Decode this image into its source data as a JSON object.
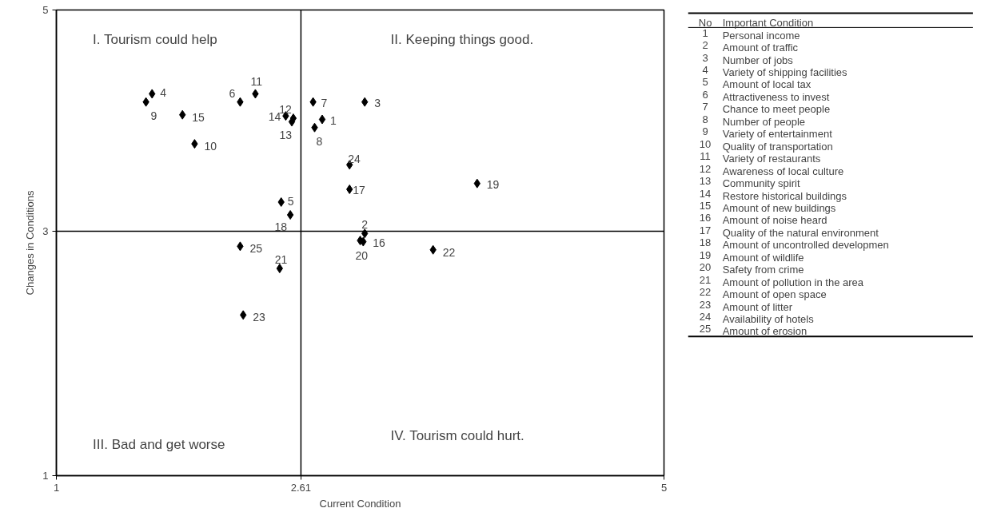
{
  "chart_data": {
    "type": "scatter",
    "xlabel": "Current Condition",
    "ylabel": "Changes in Conditions",
    "x": [
      2.75,
      3.03,
      3.03,
      1.63,
      2.48,
      2.21,
      2.69,
      2.7,
      1.59,
      1.91,
      2.31,
      2.56,
      2.55,
      2.51,
      1.83,
      3.02,
      2.93,
      2.54,
      3.77,
      3.0,
      2.47,
      3.48,
      2.23,
      2.93,
      2.21
    ],
    "values": [
      4.06,
      3.08,
      4.21,
      4.28,
      3.35,
      4.21,
      4.21,
      3.99,
      4.21,
      3.85,
      4.28,
      4.07,
      4.04,
      4.09,
      4.1,
      3.01,
      3.46,
      3.24,
      3.51,
      3.02,
      2.78,
      2.94,
      2.38,
      3.67,
      2.97
    ],
    "color": "#000000",
    "marker": "diamond",
    "grid": false,
    "xlim": [
      1,
      5
    ],
    "ylim": [
      1,
      5
    ],
    "xticks": [
      1,
      2.61,
      5
    ],
    "yticks": [
      1,
      {
        "value": 3.1,
        "label": "3"
      },
      5
    ],
    "ref_lines": [
      {
        "axis": "x",
        "value": 2.61,
        "color": "#000000"
      },
      {
        "axis": "y",
        "value": 3.1,
        "color": "#000000"
      }
    ],
    "annotations": [
      {
        "text": "1",
        "x": 2.75,
        "y": 4.06
      },
      {
        "text": "2",
        "x": 3.03,
        "y": 3.08
      },
      {
        "text": "3",
        "x": 3.03,
        "y": 4.21
      },
      {
        "text": "4",
        "x": 1.63,
        "y": 4.28
      },
      {
        "text": "5",
        "x": 2.48,
        "y": 3.35
      },
      {
        "text": "6",
        "x": 2.21,
        "y": 4.21
      },
      {
        "text": "7",
        "x": 2.69,
        "y": 4.21
      },
      {
        "text": "8",
        "x": 2.7,
        "y": 3.99
      },
      {
        "text": "9",
        "x": 1.59,
        "y": 4.21
      },
      {
        "text": "10",
        "x": 1.91,
        "y": 3.85
      },
      {
        "text": "11",
        "x": 2.31,
        "y": 4.28
      },
      {
        "text": "12",
        "x": 2.56,
        "y": 4.07
      },
      {
        "text": "13",
        "x": 2.55,
        "y": 4.04
      },
      {
        "text": "14",
        "x": 2.51,
        "y": 4.09
      },
      {
        "text": "15",
        "x": 1.83,
        "y": 4.1
      },
      {
        "text": "16",
        "x": 3.02,
        "y": 3.01
      },
      {
        "text": "17",
        "x": 2.93,
        "y": 3.46
      },
      {
        "text": "18",
        "x": 2.54,
        "y": 3.24
      },
      {
        "text": "19",
        "x": 3.77,
        "y": 3.51
      },
      {
        "text": "20",
        "x": 3.0,
        "y": 3.02
      },
      {
        "text": "21",
        "x": 2.47,
        "y": 2.78
      },
      {
        "text": "22",
        "x": 3.48,
        "y": 2.94
      },
      {
        "text": "23",
        "x": 2.23,
        "y": 2.38
      },
      {
        "text": "24",
        "x": 2.93,
        "y": 3.67
      },
      {
        "text": "25",
        "x": 2.21,
        "y": 2.97
      },
      "I. Tourism could help",
      "II. Keeping things good.",
      "III. Bad and get worse",
      "IV. Tourism could hurt.",
      "No Important Condition",
      "1 Personal income",
      "2 Amount of traffic",
      "3 Number of jobs",
      "4 Variety of shipping facilities",
      "5 Amount of local tax",
      "6 Attractiveness to invest",
      "7 Chance to meet people",
      "8 Number of people",
      "9 Variety of entertainment",
      "10 Quality of transportation",
      "11 Variety of restaurants",
      "12 Awareness of local culture",
      "13 Community spirit",
      "14 Restore historical buildings",
      "15 Amount of new buildings",
      "16 Amount of noise heard",
      "17 Quality of the natural environment",
      "18 Amount of uncontrolled developmen",
      "19 Amount of wildlife",
      "20 Safety from crime",
      "21 Amount of pollution in the area",
      "22 Amount of open space",
      "23 Amount of litter",
      "24 Availability of hotels",
      "25 Amount of erosion"
    ]
  }
}
